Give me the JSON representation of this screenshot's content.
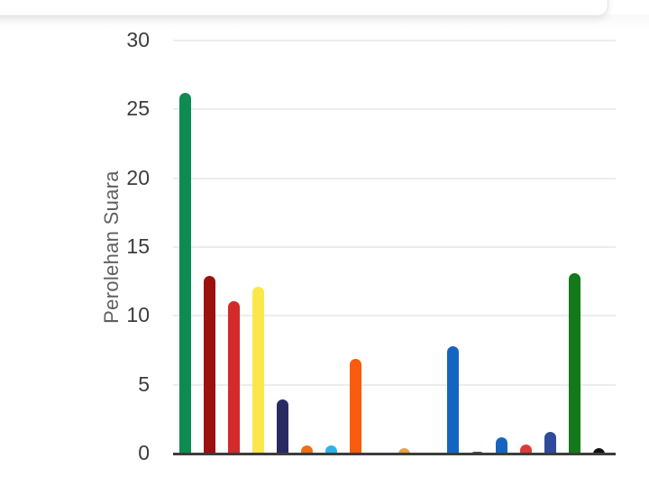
{
  "chart_data": {
    "type": "bar",
    "title": "",
    "xlabel": "",
    "ylabel": "Perolehan Suara",
    "ylim": [
      0,
      30
    ],
    "yticks": [
      0,
      5,
      10,
      15,
      20,
      25,
      30
    ],
    "grid": "horizontal",
    "legend": "none",
    "x_tick_labels_visible": false,
    "bars": [
      {
        "value": 26.2,
        "color": "#0d8b50"
      },
      {
        "value": 12.9,
        "color": "#9d1010"
      },
      {
        "value": 11.1,
        "color": "#d32a2a"
      },
      {
        "value": 12.1,
        "color": "#fbe74a"
      },
      {
        "value": 3.9,
        "color": "#2a2a63"
      },
      {
        "value": 0.6,
        "color": "#ed7014"
      },
      {
        "value": 0.6,
        "color": "#29b5e8"
      },
      {
        "value": 6.9,
        "color": "#f95b0f"
      },
      {
        "value": 0.07,
        "color": "#4a4a4a"
      },
      {
        "value": 0.4,
        "color": "#e8a33d"
      },
      {
        "value": 0.07,
        "color": "#4a4a4a"
      },
      {
        "value": 7.8,
        "color": "#1565c0"
      },
      {
        "value": 0.1,
        "color": "#4a4a4a"
      },
      {
        "value": 1.2,
        "color": "#1565c0"
      },
      {
        "value": 0.65,
        "color": "#db3a3a"
      },
      {
        "value": 1.55,
        "color": "#2d4b9a"
      },
      {
        "value": 13.1,
        "color": "#13791b"
      },
      {
        "value": 0.4,
        "color": "#101010"
      }
    ]
  },
  "ui": {
    "axis_line_color": "#3c3c3c",
    "gridline_color": "#ececec",
    "tick_label_color": "#3c3c3c",
    "axis_title_color": "#5f5f5f",
    "card_border_color": "#e3e3e3",
    "background_color": "#ffffff"
  }
}
